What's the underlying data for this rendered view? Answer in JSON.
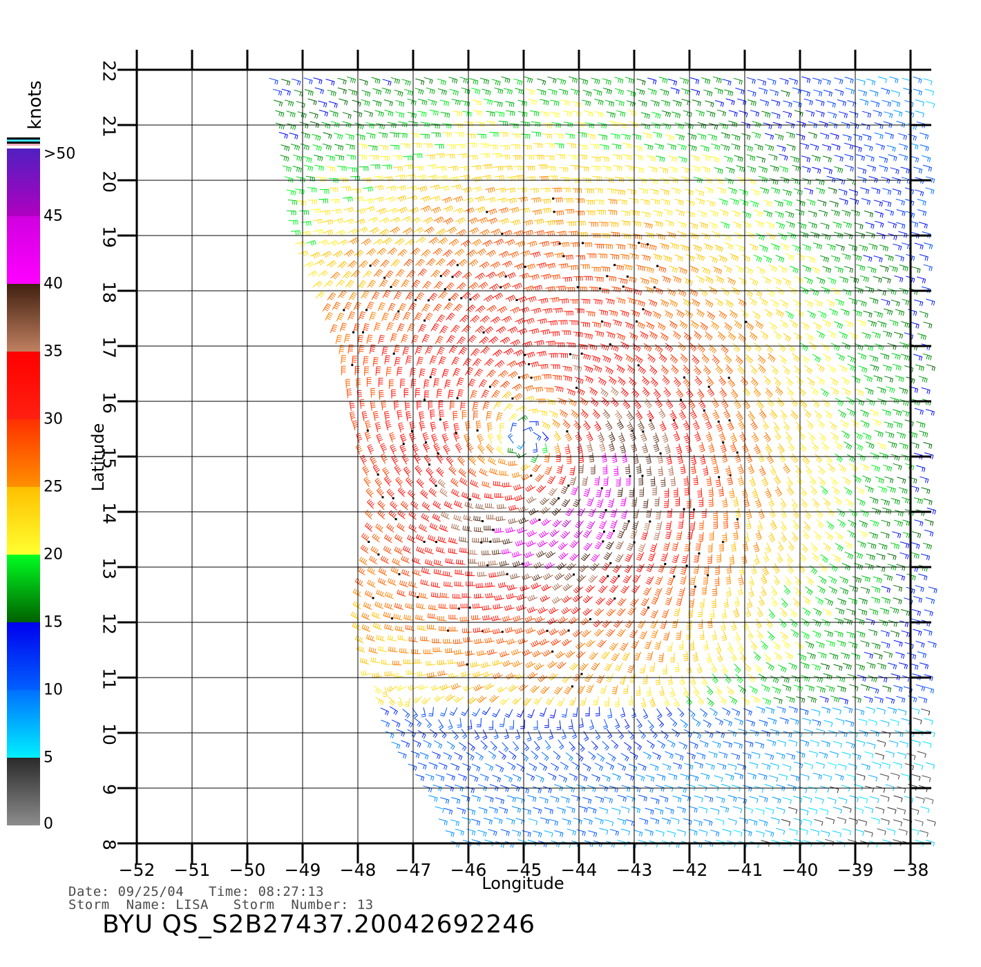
{
  "map": {
    "x_axis_title": "Longitude",
    "y_axis_title": "Latitude",
    "lon_ticks": [
      "−52",
      "−51",
      "−50",
      "−49",
      "−48",
      "−47",
      "−46",
      "−45",
      "−44",
      "−43",
      "−42",
      "−41",
      "−40",
      "−39",
      "−38"
    ],
    "lat_ticks": [
      "22",
      "21",
      "20",
      "19",
      "18",
      "17",
      "16",
      "15",
      "14",
      "13",
      "12",
      "11",
      "10",
      "9",
      "8"
    ],
    "lon_range": [
      -52,
      -38
    ],
    "lat_range": [
      8,
      22
    ],
    "storm_center": {
      "lon": -45.0,
      "lat": 15.3
    },
    "swath_edge_west": [
      {
        "lat": 22.0,
        "lon": -49.6
      },
      {
        "lat": 19.0,
        "lon": -49.2
      },
      {
        "lat": 17.0,
        "lon": -48.4
      },
      {
        "lat": 14.0,
        "lon": -47.7
      },
      {
        "lat": 12.0,
        "lon": -48.0
      },
      {
        "lat": 10.0,
        "lon": -47.5
      },
      {
        "lat": 9.0,
        "lon": -46.8
      },
      {
        "lat": 8.0,
        "lon": -46.3
      }
    ],
    "swath_edge_east_lon": -37.7
  },
  "colorbar": {
    "unit": "knots",
    "tick_labels": [
      ">50",
      "45",
      "40",
      "35",
      "30",
      "25",
      "20",
      "15",
      "10",
      "5",
      "0"
    ],
    "tick_values": [
      50,
      45,
      40,
      35,
      30,
      25,
      20,
      15,
      10,
      5,
      0
    ],
    "bands": [
      {
        "from": 0,
        "to": 5,
        "colors": [
          "#8c8c8c",
          "#2a2a2a"
        ]
      },
      {
        "from": 5,
        "to": 10,
        "colors": [
          "#00f0ff",
          "#0070ff"
        ]
      },
      {
        "from": 10,
        "to": 15,
        "colors": [
          "#0060ff",
          "#0000ee"
        ]
      },
      {
        "from": 15,
        "to": 20,
        "colors": [
          "#006000",
          "#00ff20"
        ]
      },
      {
        "from": 20,
        "to": 25,
        "colors": [
          "#ffff30",
          "#ffc000"
        ]
      },
      {
        "from": 25,
        "to": 30,
        "colors": [
          "#ff9000",
          "#ff3000"
        ]
      },
      {
        "from": 30,
        "to": 35,
        "colors": [
          "#ff2010",
          "#ff0000"
        ]
      },
      {
        "from": 35,
        "to": 40,
        "colors": [
          "#c08060",
          "#402010"
        ]
      },
      {
        "from": 40,
        "to": 45,
        "colors": [
          "#ff00ff",
          "#d000e0"
        ]
      },
      {
        "from": 45,
        "to": 50,
        "colors": [
          "#b000c0",
          "#5020c0"
        ]
      }
    ]
  },
  "footer": {
    "meta_line_1": "Date: 09/25/04   Time: 08:27:13",
    "meta_line_2": "Storm  Name: LISA   Storm  Number: 13",
    "product_id": "BYU  QS_S2B27437.20042692246"
  }
}
